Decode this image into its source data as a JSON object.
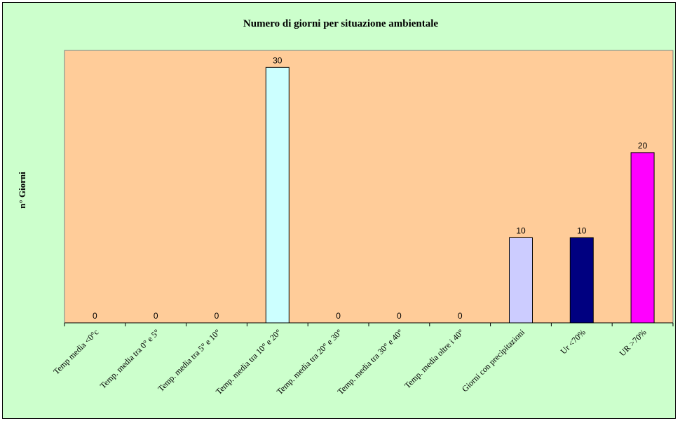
{
  "chart_data": {
    "type": "bar",
    "title": "Numero di giorni per situazione ambientale",
    "ylabel": "n° Giorni",
    "xlabel": "",
    "ylim": [
      0,
      32
    ],
    "grid": false,
    "legend": "none",
    "plot_background": "#ffcc99",
    "chart_background": "#ccffcc",
    "categories": [
      "Temp media <0°c",
      "Temp. media tra 0° e 5°",
      "Temp. media tra 5° e 10°",
      "Temp. media tra 10° e 20°",
      "Temp. media tra 20° e 30°",
      "Temp. media tra 30° e 40°",
      "Temp. media oltre i 40°",
      "Giorni con precipitazioni",
      "Ur <70%",
      "UR >70%"
    ],
    "values": [
      0,
      0,
      0,
      30,
      0,
      0,
      0,
      10,
      10,
      20
    ],
    "data_labels": [
      "0",
      "0",
      "0",
      "30",
      "0",
      "0",
      "0",
      "10",
      "10",
      "20"
    ],
    "bar_colors": [
      "#ccffff",
      "#ccffff",
      "#ccffff",
      "#ccffff",
      "#ccffff",
      "#ccffff",
      "#ccffff",
      "#ccccff",
      "#000080",
      "#ff00ff"
    ]
  }
}
